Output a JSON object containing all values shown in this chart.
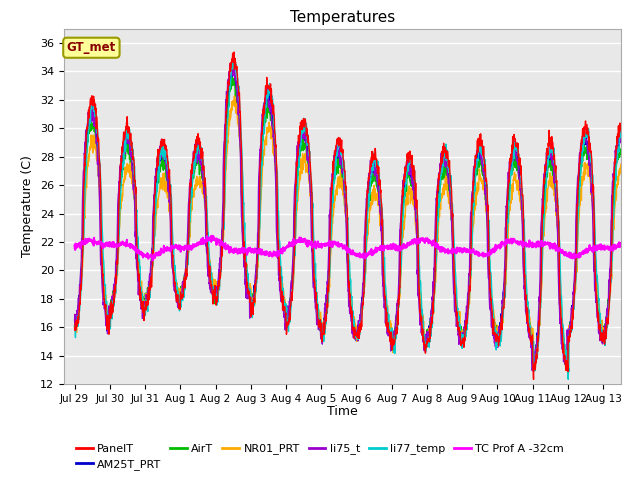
{
  "title": "Temperatures",
  "ylabel": "Temperature (C)",
  "xlabel": "Time",
  "ylim": [
    12,
    37
  ],
  "yticks": [
    12,
    14,
    16,
    18,
    20,
    22,
    24,
    26,
    28,
    30,
    32,
    34,
    36
  ],
  "xtick_labels": [
    "Jul 29",
    "Jul 30",
    "Jul 31",
    "Aug 1",
    "Aug 2",
    "Aug 3",
    "Aug 4",
    "Aug 5",
    "Aug 6",
    "Aug 7",
    "Aug 8",
    "Aug 9",
    "Aug 10",
    "Aug 11",
    "Aug 12",
    "Aug 13"
  ],
  "xtick_positions": [
    0,
    1,
    2,
    3,
    4,
    5,
    6,
    7,
    8,
    9,
    10,
    11,
    12,
    13,
    14,
    15
  ],
  "bg_color": "#e8e8e8",
  "grid_color": "#ffffff",
  "series_colors": {
    "PanelT": "#ff0000",
    "AM25T_PRT": "#0000cc",
    "AirT": "#00bb00",
    "NR01_PRT": "#ffaa00",
    "li75_t": "#9900cc",
    "li77_temp": "#00cccc",
    "TC_Prof_A": "#ff00ff"
  },
  "legend_label": "GT_met",
  "legend_box_color": "#ffff99",
  "legend_box_edge": "#999900",
  "peak_vals": [
    32,
    30,
    29,
    29,
    35,
    33,
    30.5,
    29,
    28,
    28,
    28.5,
    29,
    29,
    29,
    30
  ],
  "trough_vals": [
    15.8,
    17,
    17.5,
    18,
    18,
    17,
    16,
    15.3,
    15.2,
    14.5,
    15,
    15,
    15,
    13,
    15.2
  ],
  "tc_base": 21.6,
  "tc_amp": 0.4,
  "hours_total": 15.5,
  "n_points": 1860
}
